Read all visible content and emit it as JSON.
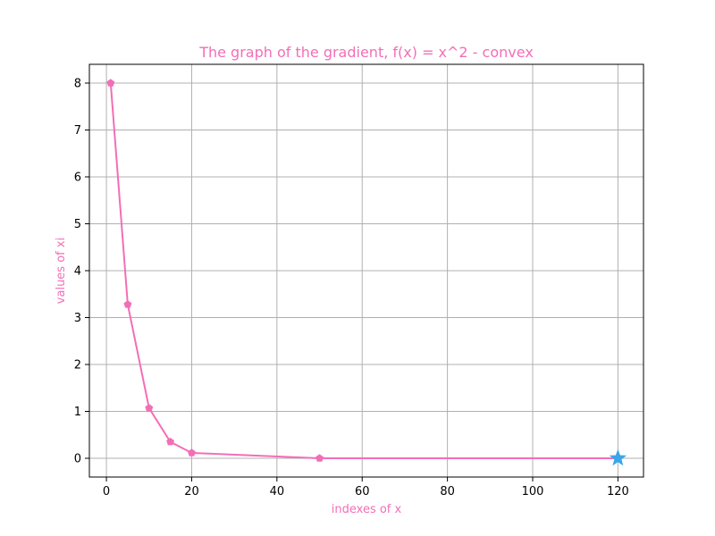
{
  "chart_data": {
    "type": "line",
    "title": "The graph of the gradient, f(x) = x^2 - convex",
    "xlabel": "indexes of x",
    "ylabel": "values of xi",
    "xlim": [
      -4,
      126
    ],
    "ylim": [
      -0.4,
      8.4
    ],
    "xticks": [
      0,
      20,
      40,
      60,
      80,
      100,
      120
    ],
    "yticks": [
      0,
      1,
      2,
      3,
      4,
      5,
      6,
      7,
      8
    ],
    "grid": true,
    "series": [
      {
        "x": [
          1,
          5,
          10,
          15,
          20,
          50,
          120
        ],
        "y": [
          8.0,
          3.28,
          1.07,
          0.35,
          0.115,
          0.0,
          0.0
        ],
        "color": "#f36eb7",
        "marker": "pentagon"
      }
    ],
    "highlight_point": {
      "x": 120,
      "y": 0.0,
      "marker": "star",
      "color": "#3aa6e8"
    },
    "colors": {
      "label": "#f36eb7",
      "grid": "#b0b0b0",
      "axis": "#000000"
    }
  }
}
